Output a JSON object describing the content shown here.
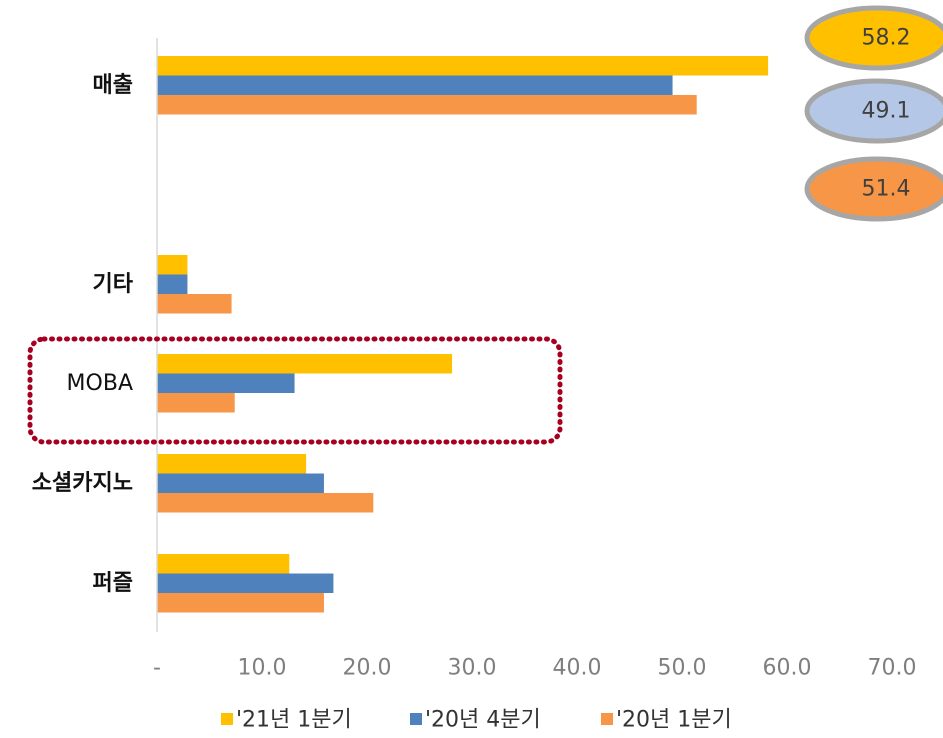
{
  "chart_data": {
    "type": "bar",
    "orientation": "horizontal",
    "title": "",
    "xlabel": "",
    "ylabel": "",
    "categories": [
      "매출",
      "기타",
      "MOBA",
      "소셜카지노",
      "퍼즐"
    ],
    "series": [
      {
        "name": "'21년 1분기",
        "color": "#FFC000",
        "values": [
          58.2,
          2.9,
          28.1,
          14.2,
          12.6
        ]
      },
      {
        "name": "'20년 4분기",
        "color": "#4F81BD",
        "values": [
          49.1,
          2.9,
          13.1,
          15.9,
          16.8
        ]
      },
      {
        "name": "'20년 1분기",
        "color": "#F79646",
        "values": [
          51.4,
          7.1,
          7.4,
          20.6,
          15.9
        ]
      }
    ],
    "xlim": [
      0,
      70
    ],
    "ticks": [
      {
        "value": 0,
        "label": "-"
      },
      {
        "value": 10,
        "label": "10.0"
      },
      {
        "value": 20,
        "label": "20.0"
      },
      {
        "value": 30,
        "label": "30.0"
      },
      {
        "value": 40,
        "label": "40.0"
      },
      {
        "value": 50,
        "label": "50.0"
      },
      {
        "value": 60,
        "label": "60.0"
      },
      {
        "value": 70,
        "label": "70.0"
      }
    ],
    "legend_position": "bottom",
    "grid": false,
    "highlight_category": "MOBA",
    "highlight_color": "#A50021",
    "callouts": [
      {
        "label": "58.2",
        "fill": "#FFC000"
      },
      {
        "label": "49.1",
        "fill": "#B4C7E7"
      },
      {
        "label": "51.4",
        "fill": "#F79646"
      }
    ]
  }
}
